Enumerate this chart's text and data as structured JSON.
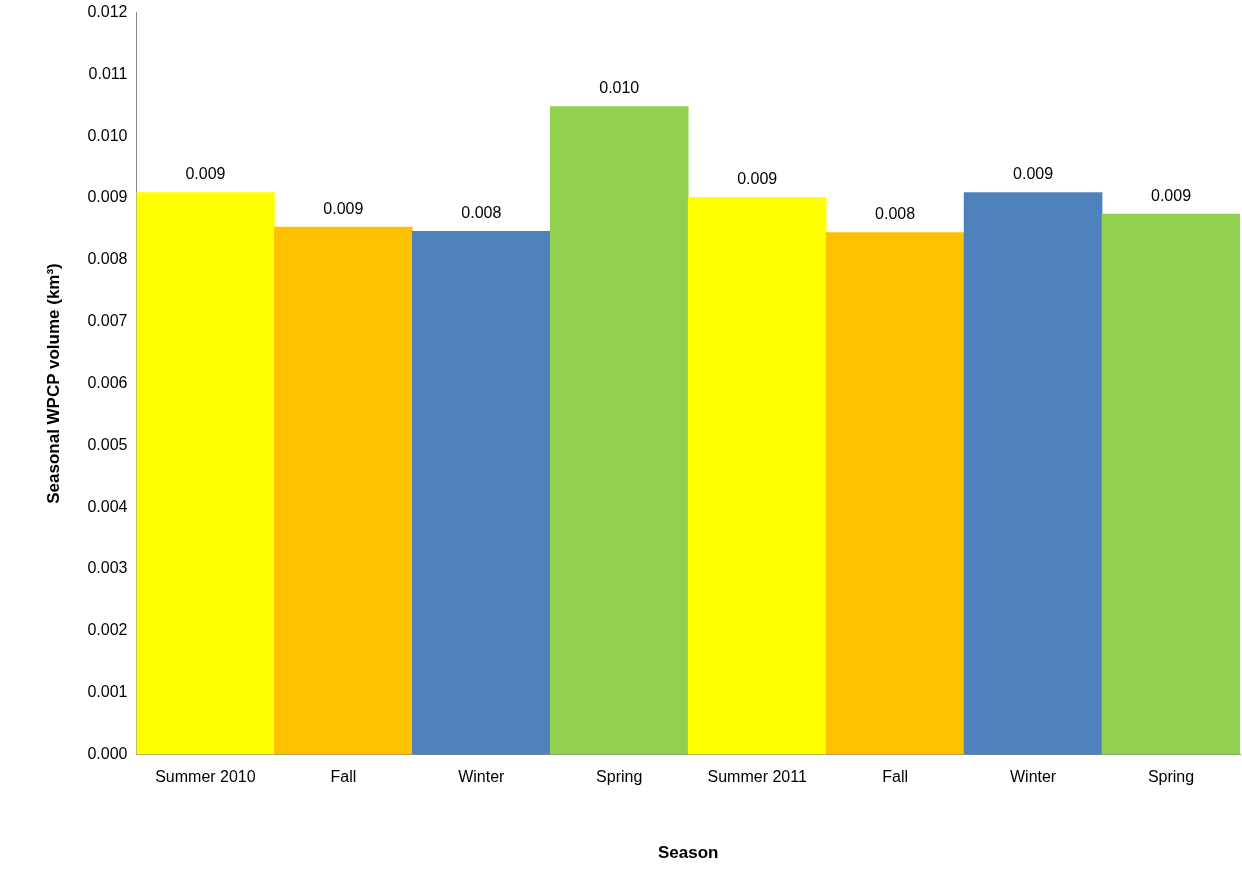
{
  "chart_data": {
    "type": "bar",
    "xlabel": "Season",
    "ylabel": "Seasonal WPCP volume (km³)",
    "categories": [
      "Summer 2010",
      "Fall",
      "Winter",
      "Spring",
      "Summer 2011",
      "Fall",
      "Winter",
      "Spring"
    ],
    "values": [
      0.00909,
      0.00853,
      0.00846,
      0.01048,
      0.00901,
      0.00844,
      0.00909,
      0.00874
    ],
    "colors": [
      "#ffff00",
      "#ffc000",
      "#4f81bd",
      "#92d050",
      "#ffff00",
      "#ffc000",
      "#4f81bd",
      "#92d050"
    ],
    "value_labels": [
      "0.009",
      "0.009",
      "0.008",
      "0.010",
      "0.009",
      "0.008",
      "0.009",
      "0.009"
    ],
    "ylim": [
      0,
      0.012
    ],
    "yticks": [
      {
        "value": 0,
        "label": "0.000"
      },
      {
        "value": 0.001,
        "label": "0.001"
      },
      {
        "value": 0.002,
        "label": "0.002"
      },
      {
        "value": 0.003,
        "label": "0.003"
      },
      {
        "value": 0.004,
        "label": "0.004"
      },
      {
        "value": 0.005,
        "label": "0.005"
      },
      {
        "value": 0.006,
        "label": "0.006"
      },
      {
        "value": 0.007,
        "label": "0.007"
      },
      {
        "value": 0.008,
        "label": "0.008"
      },
      {
        "value": 0.009,
        "label": "0.009"
      },
      {
        "value": 0.01,
        "label": "0.010"
      },
      {
        "value": 0.011,
        "label": "0.011"
      },
      {
        "value": 0.012,
        "label": "0.012"
      }
    ],
    "grid": false,
    "legend": false
  }
}
